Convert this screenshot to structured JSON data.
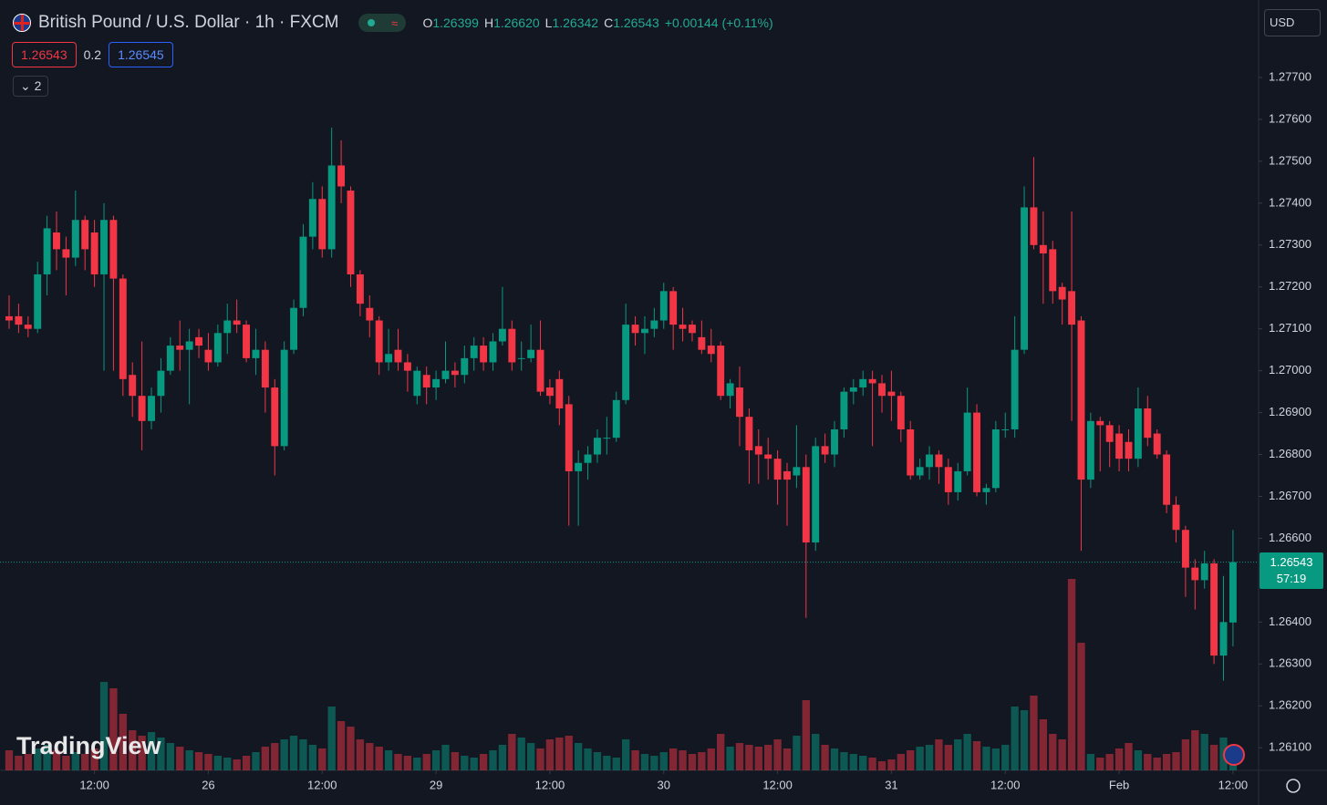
{
  "header": {
    "title": "British Pound / U.S. Dollar · 1h · FXCM",
    "ohlc": [
      {
        "label": "O",
        "value": "1.26399"
      },
      {
        "label": "H",
        "value": "1.26620"
      },
      {
        "label": "L",
        "value": "1.26342"
      },
      {
        "label": "C",
        "value": "1.26543"
      }
    ],
    "change": "+0.00144 (+0.11%)",
    "bid": "1.26543",
    "spread": "0.2",
    "ask": "1.26545",
    "indicators": "2",
    "currency": "USD",
    "logo": "TradingView"
  },
  "chart_data": {
    "type": "candlestick",
    "up_color": "#089981",
    "down_color": "#f23645",
    "open": [
      1.2713,
      1.2713,
      1.2711,
      1.271,
      1.2723,
      1.2733,
      1.2729,
      1.2727,
      1.2736,
      1.2733,
      1.2723,
      1.2736,
      1.2722,
      1.2699,
      1.2694,
      1.2688,
      1.2694,
      1.27,
      1.2706,
      1.2705,
      1.2708,
      1.2705,
      1.2702,
      1.2709,
      1.2712,
      1.2711,
      1.2703,
      1.2705,
      1.2696,
      1.2682,
      1.2705,
      1.2715,
      1.2732,
      1.2741,
      1.2729,
      1.2749,
      1.2743,
      1.2723,
      1.2715,
      1.2712,
      1.2702,
      1.2705,
      1.2702,
      1.2694,
      1.2699,
      1.2696,
      1.2698,
      1.27,
      1.2699,
      1.2703,
      1.2706,
      1.2702,
      1.2707,
      1.271,
      1.2703,
      1.2703,
      1.2705,
      1.2696,
      1.2698,
      1.2692,
      1.2676,
      1.2678,
      1.268,
      1.2684,
      1.2684,
      1.2693,
      1.2711,
      1.2709,
      1.271,
      1.2712,
      1.2719,
      1.2711,
      1.2711,
      1.2708,
      1.2706,
      1.2706,
      1.2694,
      1.2696,
      1.2689,
      1.2682,
      1.268,
      1.2679,
      1.2676,
      1.2675,
      1.2677,
      1.2659,
      1.2682,
      1.268,
      1.2686,
      1.2695,
      1.2696,
      1.2698,
      1.2697,
      1.2695,
      1.2694,
      1.2686,
      1.2675,
      1.2677,
      1.268,
      1.2677,
      1.2671,
      1.2676,
      1.269,
      1.2671,
      1.2672,
      1.2686,
      1.2686,
      1.2705,
      1.2739,
      1.273,
      1.2729,
      1.272,
      1.2719,
      1.2712,
      1.2674,
      1.2688,
      1.2687,
      1.2685,
      1.2683,
      1.2679,
      1.2691,
      1.2685,
      1.268,
      1.2668,
      1.2662,
      1.2653,
      1.265,
      1.2654,
      1.2632,
      1.26399
    ],
    "high": [
      1.2718,
      1.2716,
      1.2713,
      1.2726,
      1.2737,
      1.2738,
      1.2732,
      1.2743,
      1.2737,
      1.2736,
      1.274,
      1.2737,
      1.2723,
      1.2702,
      1.2707,
      1.2696,
      1.2703,
      1.2708,
      1.2712,
      1.271,
      1.271,
      1.2709,
      1.2711,
      1.2716,
      1.2717,
      1.2712,
      1.271,
      1.2707,
      1.2698,
      1.2707,
      1.2717,
      1.2735,
      1.2745,
      1.2744,
      1.2758,
      1.2755,
      1.2744,
      1.2724,
      1.2718,
      1.2713,
      1.271,
      1.271,
      1.2704,
      1.2701,
      1.2701,
      1.27,
      1.2707,
      1.2702,
      1.2706,
      1.2708,
      1.2708,
      1.2709,
      1.272,
      1.2712,
      1.2707,
      1.2711,
      1.2712,
      1.2698,
      1.27,
      1.2694,
      1.2681,
      1.2682,
      1.2686,
      1.2689,
      1.2695,
      1.2716,
      1.2713,
      1.2713,
      1.2715,
      1.2721,
      1.272,
      1.2715,
      1.2712,
      1.2712,
      1.271,
      1.2707,
      1.2698,
      1.2701,
      1.2691,
      1.2686,
      1.2684,
      1.2681,
      1.2678,
      1.2687,
      1.268,
      1.2684,
      1.2685,
      1.2688,
      1.2696,
      1.2698,
      1.27,
      1.27,
      1.2699,
      1.27,
      1.2695,
      1.2688,
      1.2679,
      1.2682,
      1.2681,
      1.2679,
      1.2678,
      1.2696,
      1.2692,
      1.2673,
      1.2688,
      1.269,
      1.2713,
      1.2744,
      1.2751,
      1.2738,
      1.2731,
      1.2721,
      1.2738,
      1.2713,
      1.269,
      1.2689,
      1.2688,
      1.2687,
      1.2686,
      1.2696,
      1.2694,
      1.2686,
      1.2681,
      1.267,
      1.2663,
      1.2655,
      1.2657,
      1.2655,
      1.2651,
      1.2662
    ],
    "low": [
      1.271,
      1.2709,
      1.2708,
      1.2709,
      1.2718,
      1.2724,
      1.2718,
      1.2725,
      1.2724,
      1.272,
      1.27,
      1.27,
      1.2694,
      1.2689,
      1.2681,
      1.2686,
      1.269,
      1.2699,
      1.27,
      1.2692,
      1.2703,
      1.27,
      1.2701,
      1.2704,
      1.2709,
      1.2702,
      1.2699,
      1.269,
      1.2675,
      1.2681,
      1.2704,
      1.2713,
      1.2729,
      1.2727,
      1.2727,
      1.274,
      1.272,
      1.2713,
      1.2708,
      1.2699,
      1.27,
      1.27,
      1.2695,
      1.2692,
      1.2692,
      1.2693,
      1.2697,
      1.2696,
      1.2697,
      1.27,
      1.27,
      1.27,
      1.2706,
      1.27,
      1.27,
      1.2702,
      1.2694,
      1.2692,
      1.2687,
      1.2663,
      1.2663,
      1.2674,
      1.2678,
      1.268,
      1.2683,
      1.2692,
      1.2706,
      1.2704,
      1.2708,
      1.271,
      1.2705,
      1.2707,
      1.2707,
      1.2704,
      1.2702,
      1.2693,
      1.2691,
      1.2682,
      1.2673,
      1.2673,
      1.2674,
      1.2668,
      1.2663,
      1.2672,
      1.2641,
      1.2657,
      1.2678,
      1.2677,
      1.2684,
      1.2692,
      1.2694,
      1.2682,
      1.269,
      1.2688,
      1.2683,
      1.2674,
      1.2674,
      1.2674,
      1.2673,
      1.2668,
      1.2669,
      1.2675,
      1.267,
      1.2668,
      1.2671,
      1.2684,
      1.2684,
      1.2704,
      1.2729,
      1.2716,
      1.2716,
      1.2711,
      1.2688,
      1.2657,
      1.2672,
      1.2676,
      1.2677,
      1.2676,
      1.2676,
      1.2677,
      1.2682,
      1.2679,
      1.2666,
      1.2659,
      1.2646,
      1.2643,
      1.2648,
      1.263,
      1.2626,
      1.26342
    ],
    "close": [
      1.2712,
      1.2711,
      1.271,
      1.2723,
      1.2734,
      1.2729,
      1.2727,
      1.2736,
      1.2729,
      1.2723,
      1.2736,
      1.2722,
      1.2698,
      1.2694,
      1.2688,
      1.2694,
      1.27,
      1.2706,
      1.2705,
      1.2707,
      1.2706,
      1.2702,
      1.2709,
      1.2712,
      1.2711,
      1.2703,
      1.2705,
      1.2696,
      1.2682,
      1.2705,
      1.2715,
      1.2732,
      1.2741,
      1.2729,
      1.2749,
      1.2744,
      1.2723,
      1.2716,
      1.2712,
      1.2702,
      1.2704,
      1.2702,
      1.27,
      1.27,
      1.2696,
      1.2698,
      1.27,
      1.2699,
      1.2703,
      1.2706,
      1.2702,
      1.2707,
      1.271,
      1.2702,
      1.2703,
      1.2705,
      1.2695,
      1.2694,
      1.2691,
      1.2676,
      1.2678,
      1.268,
      1.2684,
      1.2684,
      1.2693,
      1.2711,
      1.2709,
      1.271,
      1.2712,
      1.2719,
      1.2711,
      1.271,
      1.2709,
      1.2705,
      1.2704,
      1.2694,
      1.2697,
      1.2689,
      1.2681,
      1.268,
      1.2679,
      1.2674,
      1.2674,
      1.2677,
      1.2659,
      1.2682,
      1.268,
      1.2686,
      1.2695,
      1.2696,
      1.2698,
      1.2697,
      1.2694,
      1.2694,
      1.2686,
      1.2675,
      1.2677,
      1.268,
      1.2677,
      1.2671,
      1.2676,
      1.269,
      1.2671,
      1.2672,
      1.2686,
      1.2686,
      1.2705,
      1.2739,
      1.273,
      1.2728,
      1.2719,
      1.2717,
      1.2711,
      1.2674,
      1.2688,
      1.2687,
      1.2683,
      1.2679,
      1.2679,
      1.2691,
      1.2684,
      1.268,
      1.2668,
      1.2662,
      1.2653,
      1.265,
      1.2654,
      1.2632,
      1.264,
      1.26543
    ],
    "volume": [
      22,
      16,
      18,
      24,
      28,
      22,
      16,
      20,
      18,
      24,
      97,
      90,
      62,
      44,
      38,
      42,
      36,
      30,
      26,
      22,
      20,
      18,
      16,
      14,
      12,
      16,
      20,
      26,
      30,
      34,
      38,
      34,
      28,
      24,
      70,
      54,
      48,
      34,
      30,
      26,
      22,
      18,
      16,
      14,
      18,
      22,
      28,
      20,
      16,
      14,
      18,
      22,
      28,
      40,
      36,
      30,
      24,
      34,
      36,
      38,
      30,
      24,
      20,
      16,
      14,
      34,
      22,
      18,
      16,
      20,
      24,
      22,
      18,
      20,
      24,
      40,
      26,
      30,
      28,
      26,
      28,
      34,
      24,
      38,
      77,
      40,
      28,
      24,
      20,
      18,
      16,
      14,
      10,
      12,
      18,
      22,
      26,
      28,
      34,
      28,
      34,
      40,
      32,
      26,
      24,
      28,
      70,
      66,
      82,
      56,
      40,
      34,
      210,
      140,
      18,
      14,
      18,
      24,
      30,
      22,
      18,
      14,
      18,
      20,
      34,
      44,
      40,
      28,
      36,
      26
    ],
    "ylim": [
      1.26046,
      1.27885
    ],
    "yticks": [
      {
        "value": 1.277,
        "label": "1.27700"
      },
      {
        "value": 1.276,
        "label": "1.27600"
      },
      {
        "value": 1.275,
        "label": "1.27500"
      },
      {
        "value": 1.274,
        "label": "1.27400"
      },
      {
        "value": 1.273,
        "label": "1.27300"
      },
      {
        "value": 1.272,
        "label": "1.27200"
      },
      {
        "value": 1.271,
        "label": "1.27100"
      },
      {
        "value": 1.27,
        "label": "1.27000"
      },
      {
        "value": 1.269,
        "label": "1.26900"
      },
      {
        "value": 1.268,
        "label": "1.26800"
      },
      {
        "value": 1.267,
        "label": "1.26700"
      },
      {
        "value": 1.266,
        "label": "1.26600"
      },
      {
        "value": 1.264,
        "label": "1.26400"
      },
      {
        "value": 1.263,
        "label": "1.26300"
      },
      {
        "value": 1.262,
        "label": "1.26200"
      },
      {
        "value": 1.261,
        "label": "1.26100"
      }
    ],
    "xlim": [
      -0.96,
      131.7
    ],
    "xticks": [
      {
        "value": 9,
        "label": "12:00"
      },
      {
        "value": 21,
        "label": "26"
      },
      {
        "value": 33,
        "label": "12:00"
      },
      {
        "value": 45,
        "label": "29"
      },
      {
        "value": 57,
        "label": "12:00"
      },
      {
        "value": 69,
        "label": "30"
      },
      {
        "value": 81,
        "label": "12:00"
      },
      {
        "value": 93,
        "label": "31"
      },
      {
        "value": 105,
        "label": "12:00"
      },
      {
        "value": 117,
        "label": "Feb"
      },
      {
        "value": 129,
        "label": "12:00"
      }
    ],
    "grid": false,
    "current": {
      "value": 1.26543,
      "label": "1.26543",
      "countdown": "57:19"
    }
  }
}
